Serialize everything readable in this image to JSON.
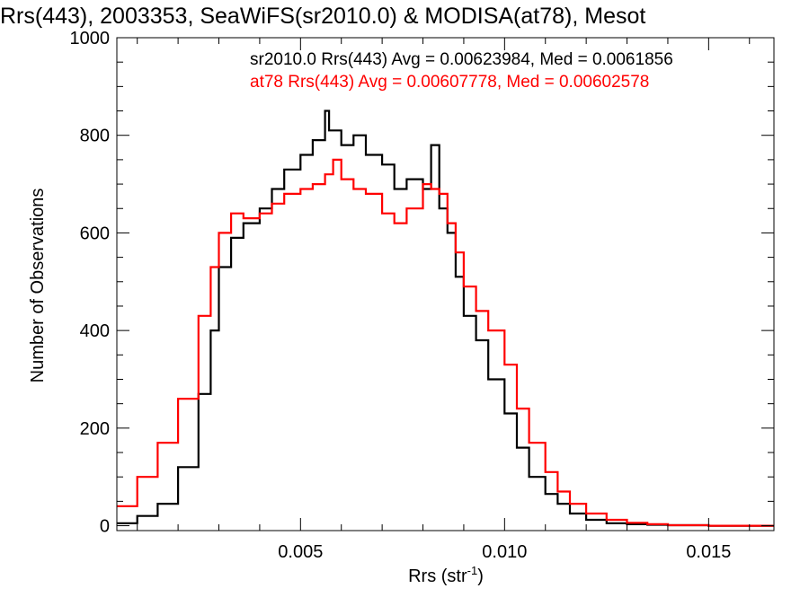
{
  "chart_data": {
    "type": "line",
    "title": "Rrs(443), 2003353, SeaWiFS(sr2010.0) & MODISA(at78), Mesot",
    "xlabel": "Rrs (str",
    "xlabel_sup": "-1",
    "xlabel_close": ")",
    "ylabel": "Number of Observations",
    "xlim": [
      0.0005,
      0.0166
    ],
    "ylim": [
      -10,
      1000
    ],
    "x_ticks": [
      {
        "value": 0.005,
        "label": "0.005"
      },
      {
        "value": 0.01,
        "label": "0.010"
      },
      {
        "value": 0.015,
        "label": "0.015"
      }
    ],
    "y_ticks": [
      {
        "value": 0,
        "label": "0"
      },
      {
        "value": 200,
        "label": "200"
      },
      {
        "value": 400,
        "label": "400"
      },
      {
        "value": 600,
        "label": "600"
      },
      {
        "value": 800,
        "label": "800"
      },
      {
        "value": 1000,
        "label": "1000"
      }
    ],
    "legend_position": "top",
    "grid": false,
    "series": [
      {
        "name": "sr2010.0 Rrs(443) Avg = 0.00623984, Med = 0.0061856",
        "color": "#000000",
        "x": [
          0.0005,
          0.001,
          0.0015,
          0.002,
          0.0025,
          0.0028,
          0.003,
          0.0033,
          0.0036,
          0.004,
          0.0043,
          0.0046,
          0.005,
          0.0053,
          0.0056,
          0.0057,
          0.006,
          0.0063,
          0.0066,
          0.007,
          0.0073,
          0.0076,
          0.008,
          0.0082,
          0.0084,
          0.0086,
          0.0088,
          0.009,
          0.0093,
          0.0096,
          0.01,
          0.0103,
          0.0106,
          0.011,
          0.0113,
          0.0116,
          0.012,
          0.0125,
          0.013,
          0.0135,
          0.014,
          0.015,
          0.016,
          0.0166
        ],
        "y": [
          5,
          20,
          45,
          120,
          270,
          400,
          530,
          590,
          620,
          650,
          690,
          730,
          760,
          790,
          850,
          810,
          780,
          800,
          760,
          740,
          690,
          710,
          690,
          780,
          650,
          600,
          510,
          430,
          380,
          300,
          230,
          160,
          100,
          65,
          45,
          25,
          12,
          5,
          3,
          2,
          1,
          0,
          0,
          0
        ]
      },
      {
        "name": "at78 Rrs(443) Avg = 0.00607778, Med = 0.00602578",
        "color": "#ff0000",
        "x": [
          0.0005,
          0.001,
          0.0015,
          0.002,
          0.0025,
          0.0028,
          0.003,
          0.0033,
          0.0036,
          0.004,
          0.0043,
          0.0046,
          0.005,
          0.0053,
          0.0056,
          0.0058,
          0.006,
          0.0063,
          0.0066,
          0.007,
          0.0073,
          0.0076,
          0.008,
          0.0082,
          0.0084,
          0.0086,
          0.0088,
          0.009,
          0.0093,
          0.0096,
          0.01,
          0.0103,
          0.0106,
          0.011,
          0.0113,
          0.0116,
          0.012,
          0.0125,
          0.013,
          0.0135,
          0.014,
          0.015,
          0.016,
          0.0166
        ],
        "y": [
          40,
          100,
          170,
          260,
          430,
          530,
          600,
          640,
          630,
          640,
          660,
          680,
          690,
          700,
          720,
          750,
          710,
          690,
          680,
          640,
          620,
          650,
          700,
          690,
          680,
          620,
          560,
          490,
          440,
          400,
          330,
          240,
          170,
          110,
          70,
          45,
          25,
          12,
          6,
          3,
          1,
          0,
          0,
          0
        ]
      }
    ]
  }
}
